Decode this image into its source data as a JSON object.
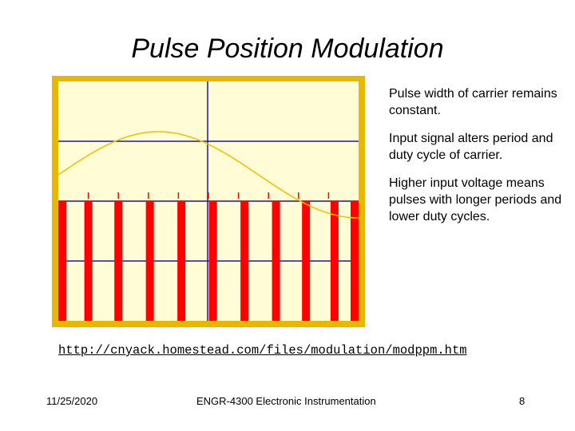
{
  "slide": {
    "title": "Pulse Position Modulation",
    "bullets": [
      "Pulse width of carrier remains constant.",
      "Input signal alters period and duty cycle of carrier.",
      "Higher input voltage means pulses with longer periods and lower duty cycles."
    ],
    "link": "http://cnyack.homestead.com/files/modulation/modppm.htm",
    "footer": {
      "date": "11/25/2020",
      "course": "ENGR-4300 Electronic Instrumentation",
      "page": "8"
    }
  },
  "colors": {
    "frame": "#e8b800",
    "background": "#fffcd6",
    "grid": "#1a1a9c",
    "signal": "#f2c200",
    "pulse": "#ff0000"
  },
  "chart_data": {
    "type": "line",
    "title": "",
    "xlabel": "",
    "ylabel": "",
    "signal": {
      "name": "input signal",
      "shape": "sine",
      "cycles": 0.75,
      "phase_start": "zero-crossing rising"
    },
    "carrier_pulses": {
      "name": "PPM carrier",
      "count": 11,
      "x_positions": [
        0.0,
        0.1,
        0.2,
        0.305,
        0.41,
        0.515,
        0.62,
        0.725,
        0.825,
        0.92,
        1.0
      ],
      "tick_marks": [
        0.1,
        0.2,
        0.3,
        0.4,
        0.5,
        0.6,
        0.7,
        0.8,
        0.9
      ]
    }
  }
}
